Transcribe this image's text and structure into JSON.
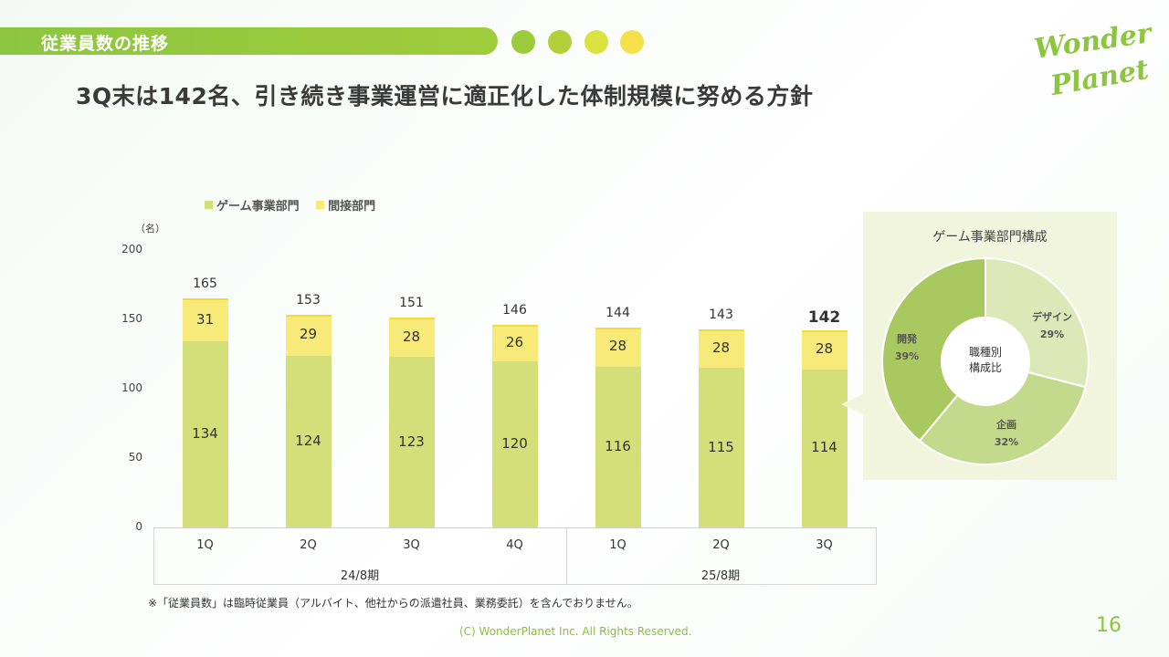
{
  "header": {
    "section_title": "従業員数の推移",
    "headline": "3Q末は142名、引き続き事業運営に適正化した体制規模に努める方針",
    "dots": [
      "#9ccc3c",
      "#b5cf3a",
      "#d9e23f",
      "#f5e04a"
    ]
  },
  "logo": {
    "line1": "Wonder",
    "line2": "Planet"
  },
  "colors": {
    "game": "#d3e07a",
    "indirect": "#f8ea78",
    "accent": "#8cc63f"
  },
  "chart_data": [
    {
      "type": "bar",
      "stacked": true,
      "unit": "（名）",
      "categories": [
        "1Q",
        "2Q",
        "3Q",
        "4Q",
        "1Q",
        "2Q",
        "3Q"
      ],
      "groups": [
        {
          "label": "24/8期",
          "span": 4
        },
        {
          "label": "25/8期",
          "span": 3
        }
      ],
      "series": [
        {
          "name": "ゲーム事業部門",
          "values": [
            134,
            124,
            123,
            120,
            116,
            115,
            114
          ]
        },
        {
          "name": "間接部門",
          "values": [
            31,
            29,
            28,
            26,
            28,
            28,
            28
          ]
        }
      ],
      "totals": [
        165,
        153,
        151,
        146,
        144,
        143,
        142
      ],
      "yticks": [
        0,
        50,
        100,
        150,
        200
      ],
      "ylim": [
        0,
        200
      ],
      "legend": "top"
    },
    {
      "type": "pie",
      "donut": true,
      "title": "ゲーム事業部門構成",
      "center_label": [
        "職種別",
        "構成比"
      ],
      "slices": [
        {
          "name": "デザイン",
          "value": 29,
          "label": "29%",
          "color": "#dce8b8"
        },
        {
          "name": "企画",
          "value": 32,
          "label": "32%",
          "color": "#c3da8c"
        },
        {
          "name": "開発",
          "value": 39,
          "label": "39%",
          "color": "#a9c860"
        }
      ]
    }
  ],
  "footnote": "※「従業員数」は臨時従業員（アルバイト、他社からの派遣社員、業務委託）を含んでおりません。",
  "copyright": "(C) WonderPlanet Inc.  All Rights Reserved.",
  "page_number": "16"
}
